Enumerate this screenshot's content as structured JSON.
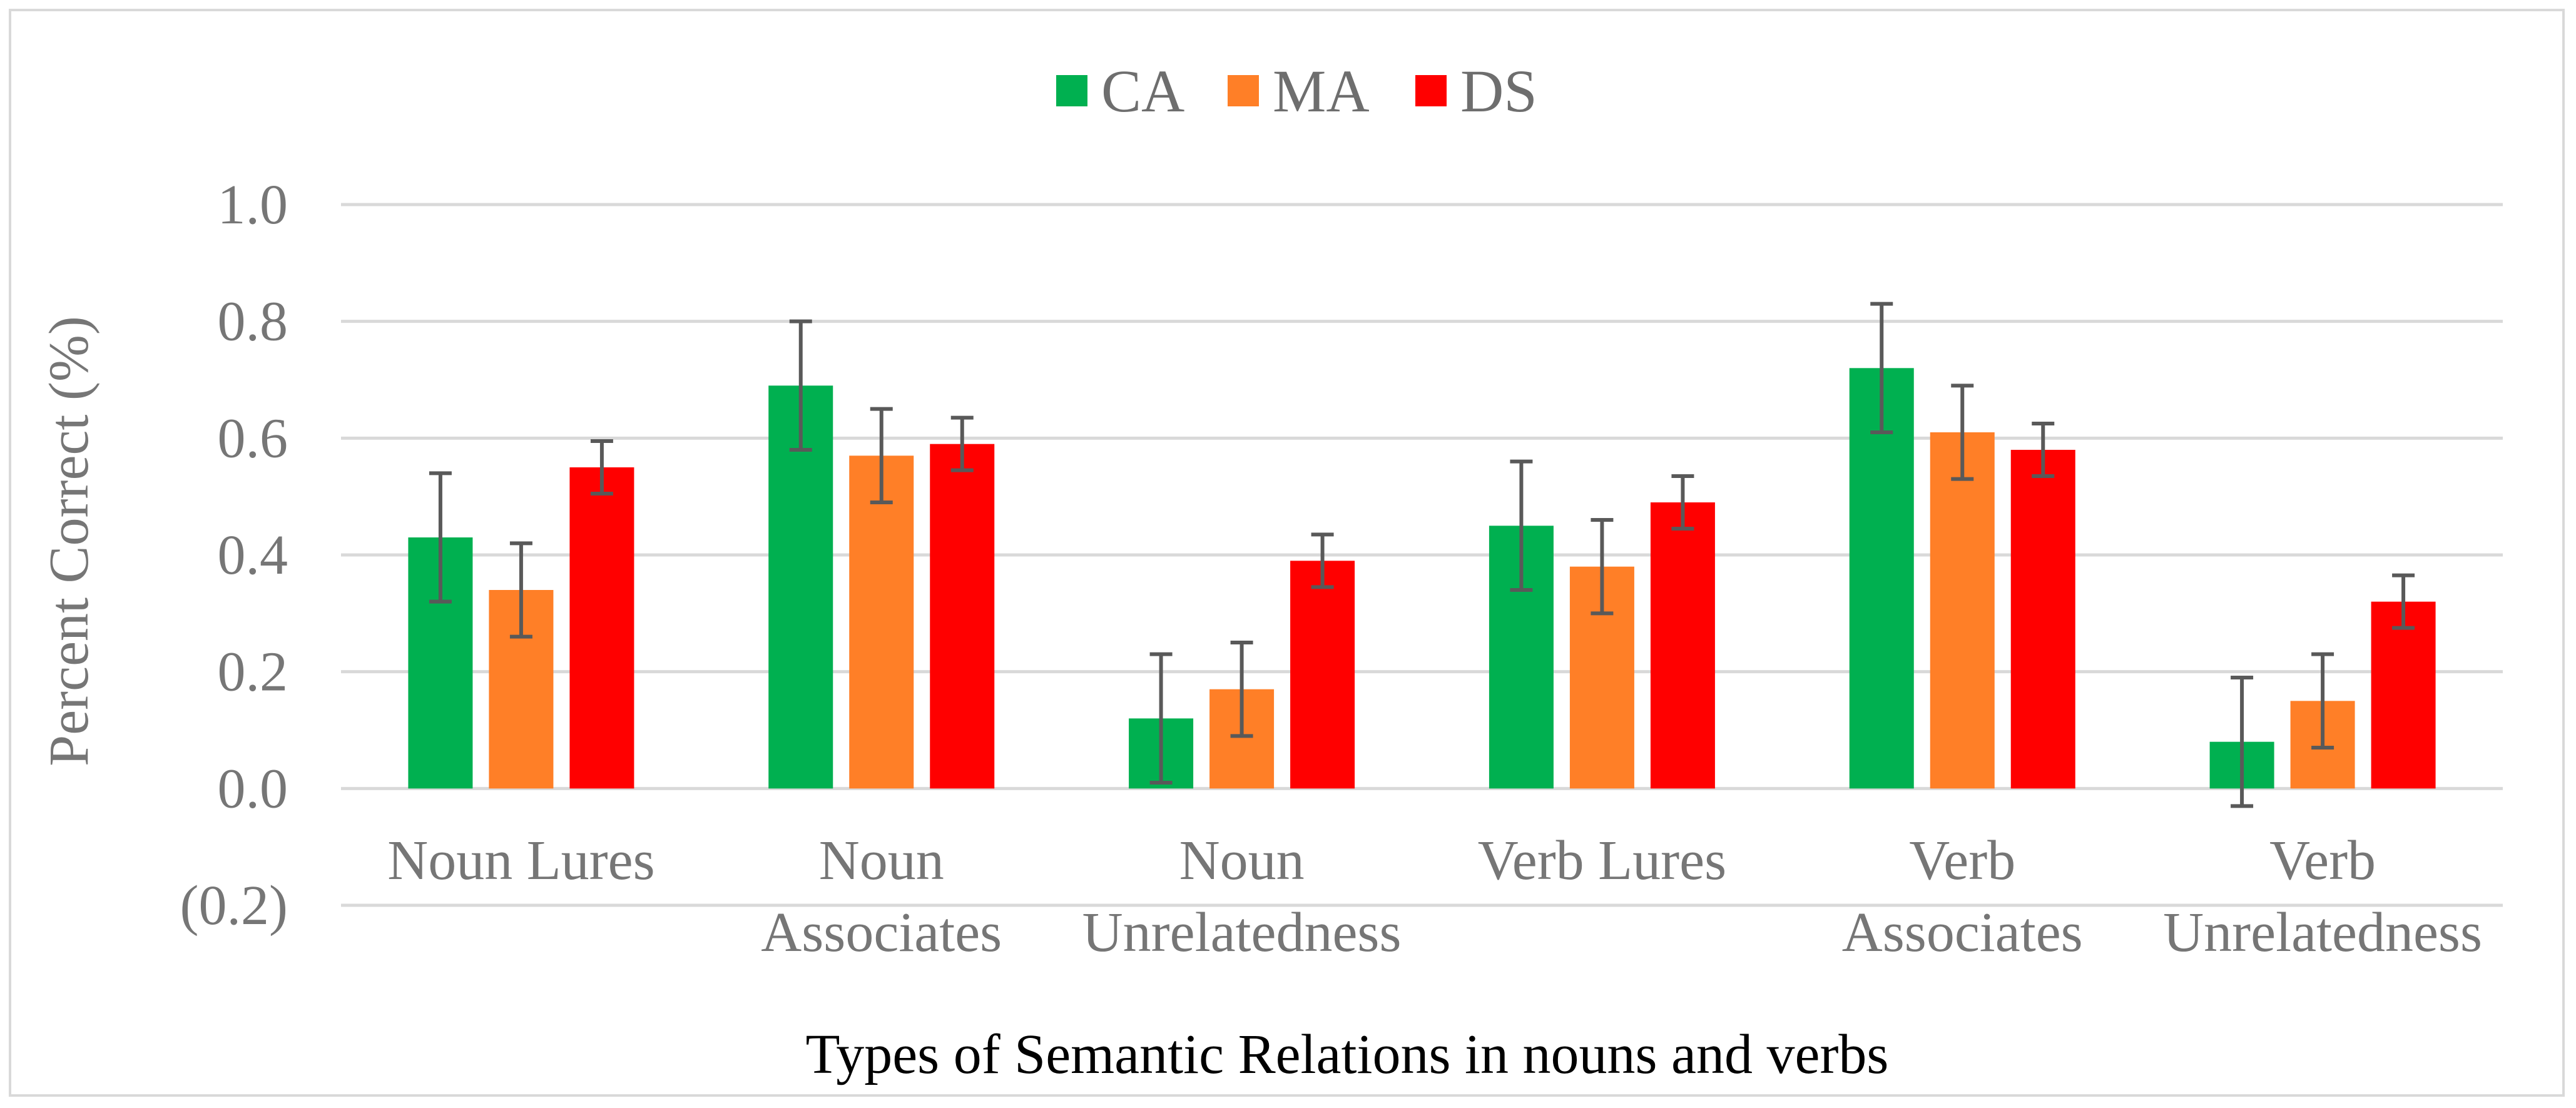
{
  "chart_data": {
    "type": "bar",
    "title": "",
    "xlabel": "Types of Semantic Relations in nouns and verbs",
    "ylabel": "Percent Correct (%)",
    "ylim": [
      -0.2,
      1.0
    ],
    "yticks": [
      1.0,
      0.8,
      0.6,
      0.4,
      0.2,
      0.0,
      -0.2
    ],
    "ytick_labels": [
      "1.0",
      "0.8",
      "0.6",
      "0.4",
      "0.2",
      "0.0",
      "(0.2)"
    ],
    "categories": [
      [
        "Noun Lures"
      ],
      [
        "Noun",
        "Associates"
      ],
      [
        "Noun",
        "Unrelatedness"
      ],
      [
        "Verb Lures"
      ],
      [
        "Verb",
        "Associates"
      ],
      [
        "Verb",
        "Unrelatedness"
      ]
    ],
    "legend_position": "top-center",
    "grid": true,
    "series": [
      {
        "name": "CA",
        "color": "#00b050",
        "values": [
          0.43,
          0.69,
          0.12,
          0.45,
          0.72,
          0.08
        ],
        "errors": [
          0.11,
          0.11,
          0.11,
          0.11,
          0.11,
          0.11
        ]
      },
      {
        "name": "MA",
        "color": "#ff7f27",
        "values": [
          0.34,
          0.57,
          0.17,
          0.38,
          0.61,
          0.15
        ],
        "errors": [
          0.08,
          0.08,
          0.08,
          0.08,
          0.08,
          0.08
        ]
      },
      {
        "name": "DS",
        "color": "#ff0000",
        "values": [
          0.55,
          0.59,
          0.39,
          0.49,
          0.58,
          0.32
        ],
        "errors": [
          0.045,
          0.045,
          0.045,
          0.045,
          0.045,
          0.045
        ]
      }
    ]
  }
}
